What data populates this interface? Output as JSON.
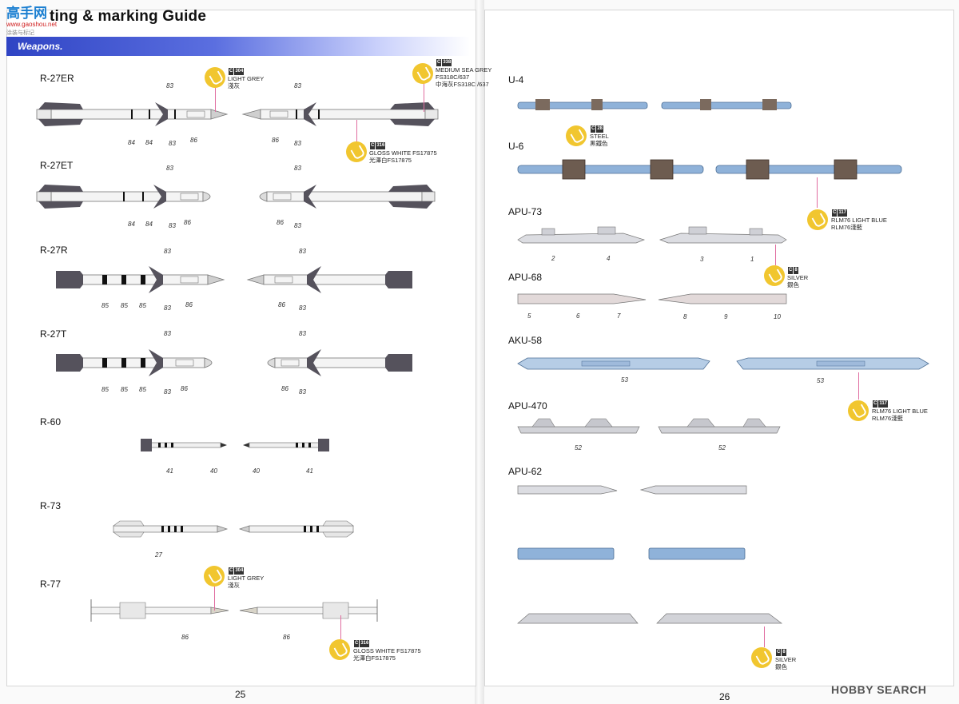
{
  "header": {
    "title": "ting & marking Guide",
    "watermark_logo": "高手网",
    "watermark_url": "www.gaoshou.net",
    "watermark_caption": "涂装与标记",
    "section": "Weapons."
  },
  "left_weapons": [
    {
      "name": "R-27ER"
    },
    {
      "name": "R-27ET"
    },
    {
      "name": "R-27R"
    },
    {
      "name": "R-27T"
    },
    {
      "name": "R-60"
    },
    {
      "name": "R-73"
    },
    {
      "name": "R-77"
    }
  ],
  "right_weapons": [
    {
      "name": "U-4"
    },
    {
      "name": "U-6"
    },
    {
      "name": "APU-73"
    },
    {
      "name": "APU-68"
    },
    {
      "name": "AKU-58"
    },
    {
      "name": "APU-470"
    },
    {
      "name": "APU-62"
    }
  ],
  "part_numbers": {
    "r27er": [
      "83",
      "83",
      "84",
      "84",
      "83",
      "86",
      "86",
      "83"
    ],
    "r27et": [
      "83",
      "83",
      "84",
      "84",
      "83",
      "86",
      "86",
      "83"
    ],
    "r27r": [
      "83",
      "83",
      "85",
      "85",
      "85",
      "83",
      "86",
      "86",
      "83"
    ],
    "r27t": [
      "83",
      "83",
      "85",
      "85",
      "85",
      "83",
      "86",
      "86",
      "83"
    ],
    "r60": [
      "41",
      "40",
      "40",
      "41"
    ],
    "r73": [
      "27"
    ],
    "r77": [
      "86",
      "86"
    ],
    "apu73": [
      "2",
      "4",
      "3",
      "1"
    ],
    "apu68": [
      "5",
      "6",
      "7",
      "8",
      "9",
      "10"
    ],
    "aku58": [
      "53",
      "53"
    ],
    "apu470": [
      "52",
      "52"
    ]
  },
  "colors": {
    "paint_chip": "#f1c62f",
    "banner": "#3a4fd0",
    "rail_blue": "#8fb2d9",
    "dark_fin": "#55525c",
    "leader": "#e06da0"
  },
  "callouts": [
    {
      "code": "C",
      "chip": "304",
      "line1": "LIGHT GREY",
      "line2": "淺灰"
    },
    {
      "code": "C",
      "chip": "338",
      "line1": "MEDIUM SEA GREY",
      "line2": "FS318C/637",
      "line3": "中海灰FS318C /637"
    },
    {
      "code": "C",
      "chip": "316",
      "line1": "GLOSS WHITE FS17875",
      "line2": "光澤白FS17875"
    },
    {
      "code": "C",
      "chip": "28",
      "line1": "STEEL",
      "line2": "黑鐵色"
    },
    {
      "code": "C",
      "chip": "117",
      "line1": "RLM76 LIGHT BLUE",
      "line2": "RLM76淺藍"
    },
    {
      "code": "C",
      "chip": "8",
      "line1": "SILVER",
      "line2": "銀色"
    },
    {
      "code": "C",
      "chip": "117",
      "line1": "RLM76 LIGHT BLUE",
      "line2": "RLM76淺藍"
    },
    {
      "code": "C",
      "chip": "304",
      "line1": "LIGHT GREY",
      "line2": "淺灰"
    },
    {
      "code": "C",
      "chip": "316",
      "line1": "GLOSS WHITE FS17875",
      "line2": "光澤白FS17875"
    },
    {
      "code": "C",
      "chip": "8",
      "line1": "SILVER",
      "line2": "銀色"
    }
  ],
  "page_numbers": {
    "left": "25",
    "right": "26"
  },
  "footer_watermark": "HOBBY SEARCH"
}
